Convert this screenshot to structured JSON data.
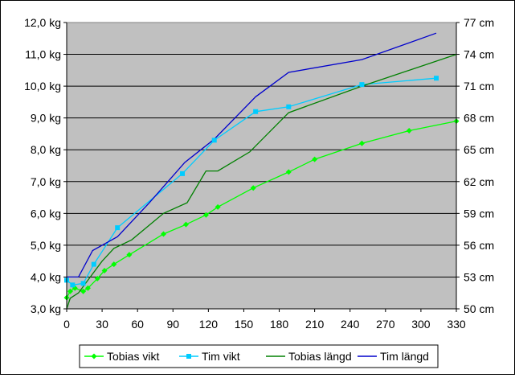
{
  "colors": {
    "plot_background": "#c0c0c0",
    "gridline": "#000000",
    "tobias_vikt": "#00ff00",
    "tim_vikt": "#00ccff",
    "tobias_langd": "#008000",
    "tim_langd": "#0000cc"
  },
  "chart_data": {
    "type": "line",
    "title": "",
    "xlabel": "",
    "ylabel": "",
    "y2label": "",
    "grid": true,
    "legend_position": "bottom",
    "xlim": [
      0,
      330
    ],
    "x_ticks": [
      "0",
      "30",
      "60",
      "90",
      "120",
      "150",
      "180",
      "210",
      "240",
      "270",
      "300",
      "330"
    ],
    "ylim": [
      3.0,
      12.0
    ],
    "y_ticks": [
      "3,0 kg",
      "4,0 kg",
      "5,0 kg",
      "6,0 kg",
      "7,0 kg",
      "8,0 kg",
      "9,0 kg",
      "10,0 kg",
      "11,0 kg",
      "12,0 kg"
    ],
    "y2lim": [
      50,
      77
    ],
    "y2_ticks": [
      "50 cm",
      "53 cm",
      "56 cm",
      "59 cm",
      "62 cm",
      "65 cm",
      "68 cm",
      "71 cm",
      "74 cm",
      "77 cm"
    ],
    "series": [
      {
        "name": "Tobias vikt",
        "axis": "left",
        "marker": "diamond",
        "color": "#00ff00",
        "points": [
          [
            0,
            3.35
          ],
          [
            3,
            3.55
          ],
          [
            7,
            3.65
          ],
          [
            14,
            3.55
          ],
          [
            18,
            3.65
          ],
          [
            26,
            3.95
          ],
          [
            32,
            4.2
          ],
          [
            40,
            4.4
          ],
          [
            53,
            4.7
          ],
          [
            82,
            5.35
          ],
          [
            101,
            5.65
          ],
          [
            118,
            5.95
          ],
          [
            128,
            6.2
          ],
          [
            158,
            6.8
          ],
          [
            188,
            7.3
          ],
          [
            210,
            7.7
          ],
          [
            250,
            8.2
          ],
          [
            290,
            8.6
          ],
          [
            330,
            8.9
          ]
        ]
      },
      {
        "name": "Tim vikt",
        "axis": "left",
        "marker": "square",
        "color": "#00ccff",
        "points": [
          [
            0,
            3.9
          ],
          [
            5,
            3.75
          ],
          [
            14,
            3.8
          ],
          [
            23,
            4.4
          ],
          [
            43,
            5.55
          ],
          [
            98,
            7.25
          ],
          [
            125,
            8.3
          ],
          [
            160,
            9.2
          ],
          [
            188,
            9.35
          ],
          [
            250,
            10.05
          ],
          [
            313,
            10.25
          ]
        ]
      },
      {
        "name": "Tobias längd",
        "axis": "right",
        "marker": "none",
        "color": "#008000",
        "points": [
          [
            0,
            50.0
          ],
          [
            3,
            51.0
          ],
          [
            10,
            51.5
          ],
          [
            20,
            53.0
          ],
          [
            30,
            54.5
          ],
          [
            40,
            55.7
          ],
          [
            55,
            56.5
          ],
          [
            82,
            59.0
          ],
          [
            102,
            60.0
          ],
          [
            118,
            63.0
          ],
          [
            128,
            63.0
          ],
          [
            155,
            64.8
          ],
          [
            188,
            68.5
          ],
          [
            250,
            71.0
          ],
          [
            330,
            74.0
          ]
        ]
      },
      {
        "name": "Tim längd",
        "axis": "right",
        "marker": "none",
        "color": "#0000cc",
        "points": [
          [
            0,
            53.0
          ],
          [
            10,
            53.0
          ],
          [
            22,
            55.5
          ],
          [
            30,
            56.0
          ],
          [
            43,
            56.8
          ],
          [
            70,
            60.0
          ],
          [
            100,
            63.8
          ],
          [
            125,
            66.0
          ],
          [
            160,
            70.0
          ],
          [
            188,
            72.3
          ],
          [
            250,
            73.5
          ],
          [
            313,
            76.0
          ]
        ]
      }
    ]
  }
}
